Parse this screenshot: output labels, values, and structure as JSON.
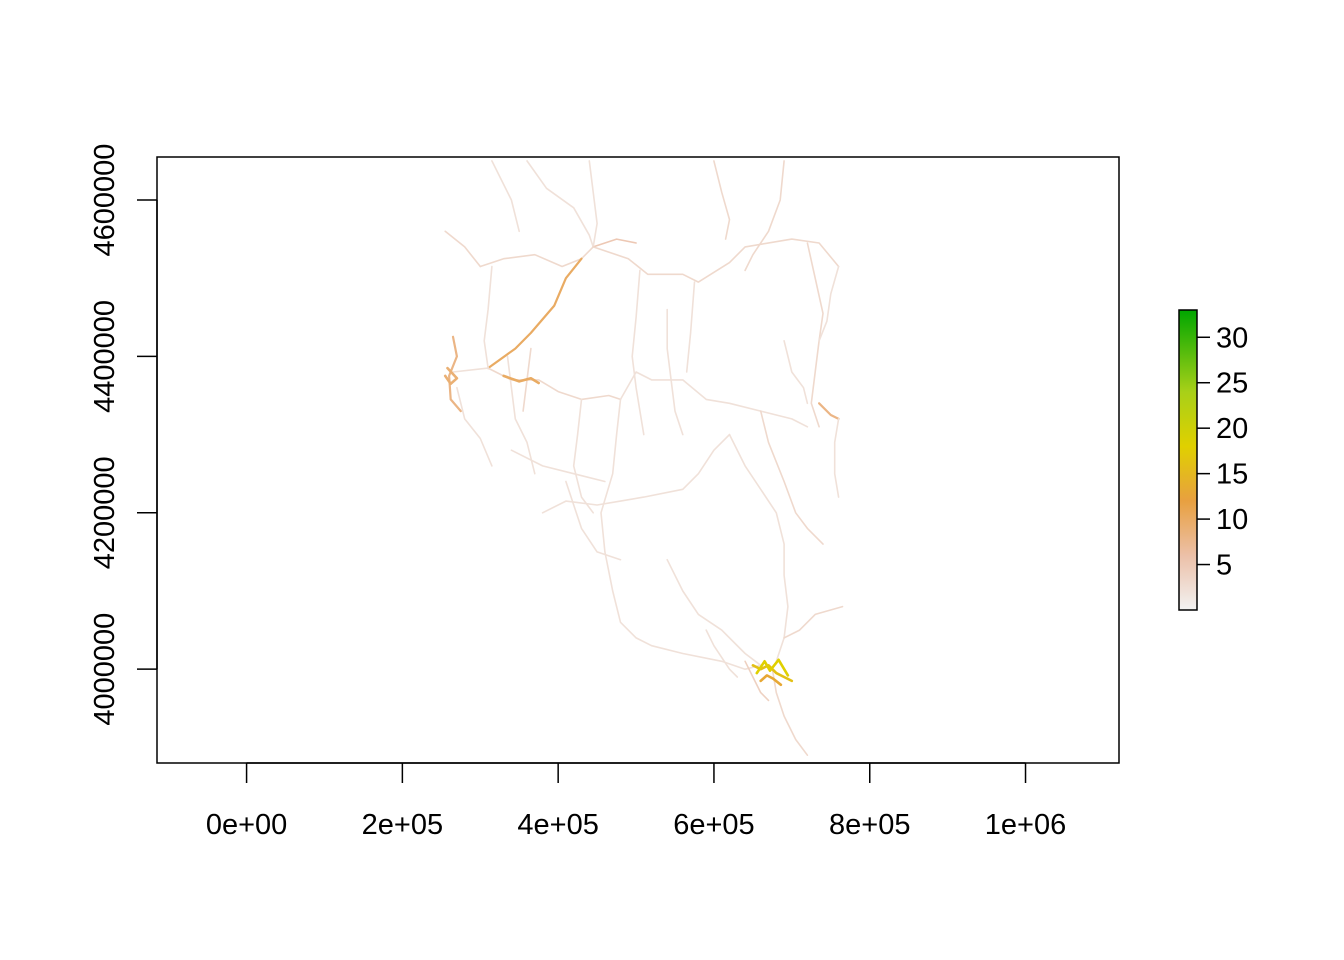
{
  "chart_data": {
    "type": "heatmap",
    "title": "",
    "xlabel": "",
    "ylabel": "",
    "xlim": [
      -115000,
      1120000
    ],
    "ylim": [
      3880000,
      4655000
    ],
    "x_ticks": [
      0,
      200000,
      400000,
      600000,
      800000,
      1000000
    ],
    "x_tick_labels": [
      "0e+00",
      "2e+05",
      "4e+05",
      "6e+05",
      "8e+05",
      "1e+06"
    ],
    "y_ticks": [
      4000000,
      4200000,
      4400000,
      4600000
    ],
    "y_tick_labels": [
      "4000000",
      "4200000",
      "4400000",
      "4600000"
    ],
    "grid": false,
    "legend": {
      "placement": "right",
      "range": [
        0,
        33
      ],
      "ticks": [
        5,
        10,
        15,
        20,
        25,
        30
      ],
      "tick_labels": [
        "5",
        "10",
        "15",
        "20",
        "25",
        "30"
      ],
      "color_stops": [
        {
          "value": 0,
          "color": "#f2f2f2"
        },
        {
          "value": 6,
          "color": "#ecc0a8"
        },
        {
          "value": 12,
          "color": "#e8a040"
        },
        {
          "value": 18,
          "color": "#e0d000"
        },
        {
          "value": 24,
          "color": "#a8d018"
        },
        {
          "value": 33,
          "color": "#00a600"
        }
      ]
    },
    "roads": [
      {
        "v": 2,
        "pts": [
          [
            315000,
            4650000
          ],
          [
            340000,
            4600000
          ],
          [
            350000,
            4560000
          ]
        ]
      },
      {
        "v": 2,
        "pts": [
          [
            360000,
            4650000
          ],
          [
            385000,
            4615000
          ],
          [
            420000,
            4590000
          ],
          [
            440000,
            4555000
          ],
          [
            445000,
            4540000
          ]
        ]
      },
      {
        "v": 2,
        "pts": [
          [
            440000,
            4650000
          ],
          [
            445000,
            4610000
          ],
          [
            450000,
            4570000
          ],
          [
            445000,
            4540000
          ]
        ]
      },
      {
        "v": 3,
        "pts": [
          [
            255000,
            4560000
          ],
          [
            280000,
            4540000
          ],
          [
            300000,
            4515000
          ]
        ]
      },
      {
        "v": 3,
        "pts": [
          [
            300000,
            4515000
          ],
          [
            330000,
            4525000
          ],
          [
            370000,
            4530000
          ],
          [
            405000,
            4515000
          ],
          [
            430000,
            4525000
          ],
          [
            445000,
            4540000
          ]
        ]
      },
      {
        "v": 5,
        "pts": [
          [
            445000,
            4540000
          ],
          [
            475000,
            4550000
          ],
          [
            500000,
            4545000
          ]
        ]
      },
      {
        "v": 10,
        "pts": [
          [
            430000,
            4525000
          ],
          [
            410000,
            4500000
          ],
          [
            395000,
            4465000
          ],
          [
            365000,
            4430000
          ],
          [
            345000,
            4410000
          ],
          [
            310000,
            4385000
          ]
        ]
      },
      {
        "v": 3,
        "pts": [
          [
            445000,
            4540000
          ],
          [
            490000,
            4525000
          ],
          [
            515000,
            4505000
          ],
          [
            560000,
            4505000
          ],
          [
            580000,
            4495000
          ],
          [
            620000,
            4520000
          ],
          [
            640000,
            4540000
          ],
          [
            700000,
            4550000
          ],
          [
            735000,
            4545000
          ],
          [
            760000,
            4515000
          ]
        ]
      },
      {
        "v": 3,
        "pts": [
          [
            600000,
            4650000
          ],
          [
            610000,
            4610000
          ],
          [
            620000,
            4575000
          ],
          [
            615000,
            4550000
          ]
        ]
      },
      {
        "v": 3,
        "pts": [
          [
            690000,
            4650000
          ],
          [
            685000,
            4600000
          ],
          [
            670000,
            4560000
          ],
          [
            650000,
            4530000
          ],
          [
            640000,
            4510000
          ]
        ]
      },
      {
        "v": 2,
        "pts": [
          [
            315000,
            4515000
          ],
          [
            310000,
            4460000
          ],
          [
            305000,
            4420000
          ],
          [
            310000,
            4385000
          ]
        ]
      },
      {
        "v": 8,
        "pts": [
          [
            265000,
            4425000
          ],
          [
            270000,
            4400000
          ],
          [
            260000,
            4375000
          ],
          [
            262000,
            4345000
          ],
          [
            275000,
            4330000
          ]
        ]
      },
      {
        "v": 3,
        "pts": [
          [
            310000,
            4385000
          ],
          [
            340000,
            4370000
          ],
          [
            375000,
            4370000
          ],
          [
            400000,
            4355000
          ],
          [
            430000,
            4345000
          ],
          [
            465000,
            4350000
          ],
          [
            480000,
            4345000
          ]
        ]
      },
      {
        "v": 2,
        "pts": [
          [
            265000,
            4380000
          ],
          [
            310000,
            4385000
          ]
        ]
      },
      {
        "v": 2,
        "pts": [
          [
            270000,
            4360000
          ],
          [
            280000,
            4320000
          ],
          [
            300000,
            4295000
          ],
          [
            315000,
            4260000
          ]
        ]
      },
      {
        "v": 2,
        "pts": [
          [
            335000,
            4400000
          ],
          [
            340000,
            4360000
          ],
          [
            345000,
            4320000
          ],
          [
            360000,
            4290000
          ],
          [
            370000,
            4250000
          ]
        ]
      },
      {
        "v": 2,
        "pts": [
          [
            480000,
            4345000
          ],
          [
            500000,
            4380000
          ],
          [
            520000,
            4370000
          ],
          [
            560000,
            4370000
          ],
          [
            590000,
            4345000
          ],
          [
            620000,
            4340000
          ],
          [
            660000,
            4330000
          ],
          [
            700000,
            4320000
          ],
          [
            720000,
            4310000
          ]
        ]
      },
      {
        "v": 2,
        "pts": [
          [
            505000,
            4510000
          ],
          [
            500000,
            4450000
          ],
          [
            495000,
            4400000
          ],
          [
            500000,
            4360000
          ],
          [
            510000,
            4300000
          ]
        ]
      },
      {
        "v": 2,
        "pts": [
          [
            575000,
            4495000
          ],
          [
            570000,
            4430000
          ],
          [
            565000,
            4380000
          ]
        ]
      },
      {
        "v": 3,
        "pts": [
          [
            720000,
            4545000
          ],
          [
            730000,
            4500000
          ],
          [
            740000,
            4455000
          ],
          [
            735000,
            4420000
          ],
          [
            730000,
            4380000
          ],
          [
            725000,
            4340000
          ],
          [
            735000,
            4310000
          ]
        ]
      },
      {
        "v": 2,
        "pts": [
          [
            760000,
            4515000
          ],
          [
            750000,
            4480000
          ],
          [
            745000,
            4445000
          ],
          [
            735000,
            4420000
          ]
        ]
      },
      {
        "v": 8,
        "pts": [
          [
            735000,
            4340000
          ],
          [
            750000,
            4325000
          ],
          [
            760000,
            4320000
          ]
        ]
      },
      {
        "v": 2,
        "pts": [
          [
            480000,
            4345000
          ],
          [
            475000,
            4300000
          ],
          [
            470000,
            4250000
          ],
          [
            455000,
            4200000
          ],
          [
            460000,
            4150000
          ],
          [
            470000,
            4100000
          ],
          [
            480000,
            4060000
          ],
          [
            500000,
            4040000
          ],
          [
            520000,
            4030000
          ],
          [
            560000,
            4020000
          ],
          [
            610000,
            4010000
          ],
          [
            640000,
            4000000
          ],
          [
            660000,
            4005000
          ]
        ]
      },
      {
        "v": 2,
        "pts": [
          [
            380000,
            4200000
          ],
          [
            410000,
            4215000
          ],
          [
            450000,
            4210000
          ],
          [
            480000,
            4215000
          ],
          [
            510000,
            4220000
          ],
          [
            560000,
            4230000
          ],
          [
            580000,
            4250000
          ],
          [
            600000,
            4280000
          ],
          [
            620000,
            4300000
          ]
        ]
      },
      {
        "v": 2,
        "pts": [
          [
            430000,
            4345000
          ],
          [
            425000,
            4300000
          ],
          [
            420000,
            4260000
          ],
          [
            430000,
            4220000
          ],
          [
            445000,
            4200000
          ]
        ]
      },
      {
        "v": 2,
        "pts": [
          [
            620000,
            4300000
          ],
          [
            640000,
            4260000
          ],
          [
            660000,
            4230000
          ],
          [
            680000,
            4200000
          ],
          [
            690000,
            4160000
          ],
          [
            690000,
            4120000
          ],
          [
            695000,
            4080000
          ],
          [
            690000,
            4040000
          ],
          [
            680000,
            4010000
          ]
        ]
      },
      {
        "v": 3,
        "pts": [
          [
            660000,
            4330000
          ],
          [
            670000,
            4290000
          ],
          [
            690000,
            4240000
          ],
          [
            705000,
            4200000
          ],
          [
            720000,
            4180000
          ],
          [
            740000,
            4160000
          ]
        ]
      },
      {
        "v": 2,
        "pts": [
          [
            540000,
            4140000
          ],
          [
            560000,
            4100000
          ],
          [
            580000,
            4070000
          ],
          [
            610000,
            4050000
          ],
          [
            640000,
            4020000
          ],
          [
            660000,
            4005000
          ]
        ]
      },
      {
        "v": 2,
        "pts": [
          [
            340000,
            4280000
          ],
          [
            380000,
            4260000
          ],
          [
            420000,
            4250000
          ],
          [
            460000,
            4240000
          ]
        ]
      },
      {
        "v": 2,
        "pts": [
          [
            540000,
            4460000
          ],
          [
            540000,
            4410000
          ],
          [
            545000,
            4370000
          ],
          [
            550000,
            4330000
          ],
          [
            560000,
            4300000
          ]
        ]
      },
      {
        "v": 3,
        "pts": [
          [
            690000,
            4040000
          ],
          [
            710000,
            4050000
          ],
          [
            730000,
            4070000
          ],
          [
            765000,
            4080000
          ]
        ]
      },
      {
        "v": 3,
        "pts": [
          [
            675000,
            4000000
          ],
          [
            680000,
            3970000
          ],
          [
            690000,
            3940000
          ],
          [
            705000,
            3910000
          ],
          [
            720000,
            3890000
          ]
        ]
      },
      {
        "v": 4,
        "pts": [
          [
            640000,
            4010000
          ],
          [
            650000,
            3990000
          ],
          [
            660000,
            3970000
          ],
          [
            670000,
            3960000
          ]
        ]
      },
      {
        "v": 2,
        "pts": [
          [
            590000,
            4050000
          ],
          [
            600000,
            4030000
          ],
          [
            620000,
            4000000
          ],
          [
            630000,
            3990000
          ]
        ]
      },
      {
        "v": 2,
        "pts": [
          [
            410000,
            4240000
          ],
          [
            430000,
            4180000
          ],
          [
            450000,
            4150000
          ],
          [
            480000,
            4140000
          ]
        ]
      },
      {
        "v": 2,
        "pts": [
          [
            760000,
            4320000
          ],
          [
            755000,
            4290000
          ],
          [
            755000,
            4250000
          ],
          [
            760000,
            4220000
          ]
        ]
      },
      {
        "v": 2,
        "pts": [
          [
            690000,
            4420000
          ],
          [
            700000,
            4380000
          ],
          [
            715000,
            4360000
          ],
          [
            720000,
            4340000
          ]
        ]
      },
      {
        "v": 3,
        "pts": [
          [
            355000,
            4330000
          ],
          [
            360000,
            4370000
          ],
          [
            365000,
            4410000
          ]
        ]
      }
    ],
    "hotspots": [
      {
        "v": 16,
        "pts": [
          [
            650000,
            4005000
          ],
          [
            660000,
            4000000
          ],
          [
            670000,
            4005000
          ],
          [
            680000,
            3995000
          ],
          [
            690000,
            3990000
          ],
          [
            700000,
            3985000
          ]
        ]
      },
      {
        "v": 18,
        "pts": [
          [
            655000,
            3995000
          ],
          [
            665000,
            4010000
          ],
          [
            672000,
            3998000
          ],
          [
            683000,
            4012000
          ],
          [
            695000,
            3992000
          ]
        ]
      },
      {
        "v": 13,
        "pts": [
          [
            660000,
            3985000
          ],
          [
            668000,
            3992000
          ],
          [
            676000,
            3988000
          ],
          [
            686000,
            3980000
          ]
        ]
      },
      {
        "v": 10,
        "pts": [
          [
            330000,
            4375000
          ],
          [
            350000,
            4368000
          ],
          [
            365000,
            4372000
          ],
          [
            375000,
            4366000
          ]
        ]
      },
      {
        "v": 9,
        "pts": [
          [
            255000,
            4375000
          ],
          [
            262000,
            4365000
          ],
          [
            270000,
            4372000
          ],
          [
            258000,
            4385000
          ]
        ]
      }
    ]
  }
}
